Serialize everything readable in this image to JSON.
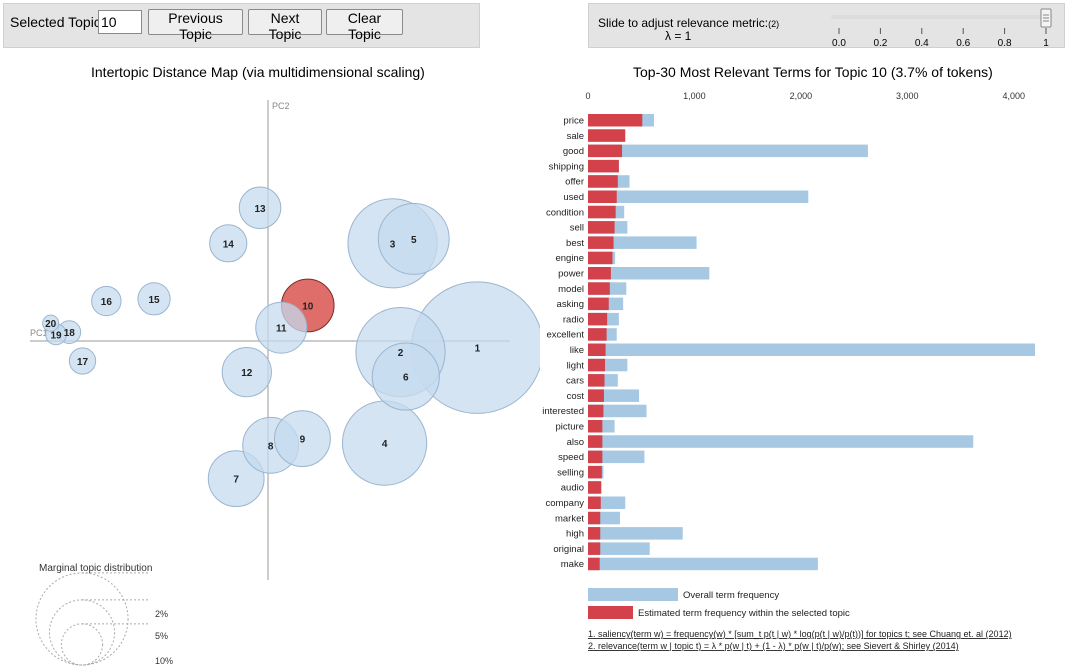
{
  "controls": {
    "selected_topic_label": "Selected Topic:",
    "selected_topic_value": "10",
    "previous_label": "Previous Topic",
    "next_label": "Next Topic",
    "clear_label": "Clear Topic",
    "slider_label": "Slide to adjust relevance metric:",
    "slider_note": "(2)",
    "lambda_text": "λ = 1",
    "lambda_value": 1,
    "slider_ticks": [
      "0.0",
      "0.2",
      "0.4",
      "0.6",
      "0.8",
      "1"
    ]
  },
  "colors": {
    "bubble_fill": "#c6dbef",
    "bubble_stroke": "#9ab5cf",
    "selected_fill": "#d9534f",
    "overall_bar": "#a6c8e2",
    "topic_bar": "#d3414a"
  },
  "chart_data": [
    {
      "type": "scatter",
      "title": "Intertopic Distance Map (via multidimensional scaling)",
      "xlabel": "PC1",
      "ylabel": "PC2",
      "selected_topic": 10,
      "topics": [
        {
          "id": 1,
          "x": 0.79,
          "y": -0.03,
          "size": 10.0
        },
        {
          "id": 2,
          "x": 0.5,
          "y": -0.05,
          "size": 4.6
        },
        {
          "id": 3,
          "x": 0.47,
          "y": 0.44,
          "size": 4.6
        },
        {
          "id": 5,
          "x": 0.55,
          "y": 0.46,
          "size": 2.9
        },
        {
          "id": 4,
          "x": 0.44,
          "y": -0.46,
          "size": 4.1
        },
        {
          "id": 6,
          "x": 0.52,
          "y": -0.16,
          "size": 2.6
        },
        {
          "id": 7,
          "x": -0.12,
          "y": -0.62,
          "size": 1.8
        },
        {
          "id": 8,
          "x": 0.01,
          "y": -0.47,
          "size": 1.8
        },
        {
          "id": 9,
          "x": 0.13,
          "y": -0.44,
          "size": 1.8
        },
        {
          "id": 10,
          "x": 0.15,
          "y": 0.16,
          "size": 1.6
        },
        {
          "id": 11,
          "x": 0.05,
          "y": 0.06,
          "size": 1.5
        },
        {
          "id": 12,
          "x": -0.08,
          "y": -0.14,
          "size": 1.4
        },
        {
          "id": 13,
          "x": -0.03,
          "y": 0.6,
          "size": 1.0
        },
        {
          "id": 14,
          "x": -0.15,
          "y": 0.44,
          "size": 0.8
        },
        {
          "id": 15,
          "x": -0.43,
          "y": 0.19,
          "size": 0.6
        },
        {
          "id": 16,
          "x": -0.61,
          "y": 0.18,
          "size": 0.5
        },
        {
          "id": 17,
          "x": -0.7,
          "y": -0.09,
          "size": 0.4
        },
        {
          "id": 18,
          "x": -0.75,
          "y": 0.04,
          "size": 0.3
        },
        {
          "id": 19,
          "x": -0.8,
          "y": 0.03,
          "size": 0.25
        },
        {
          "id": 20,
          "x": -0.82,
          "y": 0.08,
          "size": 0.15
        }
      ],
      "size_legend": {
        "title": "Marginal topic distribution",
        "items": [
          {
            "label": "2%",
            "value": 2
          },
          {
            "label": "5%",
            "value": 5
          },
          {
            "label": "10%",
            "value": 10
          }
        ]
      }
    },
    {
      "type": "bar",
      "title": "Top-30 Most Relevant Terms for Topic 10 (3.7% of tokens)",
      "orientation": "horizontal",
      "xlim": [
        0,
        4200
      ],
      "xticks": [
        0,
        1000,
        2000,
        3000,
        4000
      ],
      "xtick_labels": [
        "0",
        "1,000",
        "2,000",
        "3,000",
        "4,000"
      ],
      "categories": [
        "price",
        "sale",
        "good",
        "shipping",
        "offer",
        "used",
        "condition",
        "sell",
        "best",
        "engine",
        "power",
        "model",
        "asking",
        "radio",
        "excellent",
        "like",
        "light",
        "cars",
        "cost",
        "interested",
        "picture",
        "also",
        "speed",
        "selling",
        "audio",
        "company",
        "market",
        "high",
        "original",
        "make"
      ],
      "series": [
        {
          "name": "Overall term frequency",
          "values": [
            620,
            340,
            2630,
            290,
            390,
            2070,
            340,
            370,
            1020,
            255,
            1140,
            360,
            330,
            290,
            270,
            4200,
            370,
            280,
            480,
            550,
            250,
            3620,
            530,
            145,
            120,
            350,
            300,
            890,
            580,
            2160
          ]
        },
        {
          "name": "Estimated term frequency within the selected topic",
          "values": [
            510,
            350,
            320,
            290,
            280,
            270,
            260,
            250,
            240,
            230,
            215,
            205,
            195,
            180,
            175,
            165,
            160,
            155,
            150,
            145,
            135,
            135,
            135,
            130,
            125,
            120,
            115,
            115,
            115,
            110
          ]
        }
      ],
      "footnotes": [
        "1. saliency(term w) = frequency(w) * [sum_t p(t | w) * log(p(t | w)/p(t))] for topics t; see Chuang et. al (2012)",
        "2. relevance(term w | topic t) = λ * p(w | t) + (1 - λ) * p(w | t)/p(w); see Sievert & Shirley (2014)"
      ]
    }
  ]
}
